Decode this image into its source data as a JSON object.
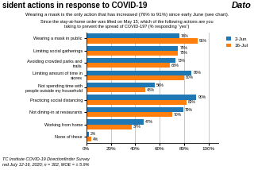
{
  "chart_data": {
    "type": "bar",
    "orientation": "horizontal",
    "title": "sident actions in response to COVID-19",
    "subtitle": "Wearing a mask is the only action that has increased (76% to 91%) since early June (see chart).",
    "annotations": [
      "Dato",
      "Since the stay-at-home order was lifted on May 15, which of the following actions are you",
      "taking to prevent the spread of COVID-19? (% responding “yes”)",
      "TC Institute COVID-19 Directionfinder Survey",
      "red July 12-16, 2020; n = 302, MOE = ± 5.9%"
    ],
    "categories": [
      "Wearing a mask in public",
      "Limiting social gatherings",
      "Avoiding crowded parks and trails",
      "Limiting amount of time in stores",
      "Not spending time with people outside my household",
      "Practicing social distancing",
      "Not dining-in at restaurants",
      "Working from home",
      "None of these"
    ],
    "series": [
      {
        "name": "2-Jun",
        "values": [
          76,
          75,
          73,
          86,
          56,
          90,
          79,
          47,
          2
        ],
        "value_labels": [
          "76%",
          "75%",
          "73%",
          "86%",
          "56%",
          "90%",
          "79%",
          "47%",
          "2%"
        ]
      },
      {
        "name": "16-Jul",
        "values": [
          91,
          75,
          68,
          80,
          48,
          82,
          70,
          37,
          4
        ],
        "value_labels": [
          "91%",
          "75%",
          "68%",
          "80%",
          "48%",
          "82%",
          "70%",
          "37%",
          "4%"
        ]
      }
    ],
    "xlim": [
      0,
      108
    ],
    "xticks": [
      {
        "value": 0,
        "label": "0%"
      },
      {
        "value": 20,
        "label": "20%"
      },
      {
        "value": 40,
        "label": "40%"
      },
      {
        "value": 60,
        "label": "60%"
      },
      {
        "value": 80,
        "label": "80%"
      },
      {
        "value": 100,
        "label": "100%"
      }
    ],
    "grid": true,
    "legend": "upper right",
    "data_labels": true
  }
}
